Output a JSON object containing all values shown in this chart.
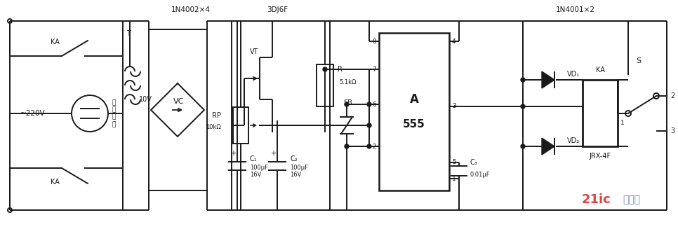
{
  "bg": "#ffffff",
  "lc": "#1a1a1a",
  "lw": 1.4,
  "label_1N4002": "1N4002×4",
  "label_3DJ6F": "3DJ6F",
  "label_1N4001": "1N4001×2",
  "label_220V": "~220V",
  "label_T": "T",
  "label_10V": "10V",
  "label_VC": "VC",
  "label_VT": "VT",
  "label_RP": "RP",
  "label_RP_val": "10kΩ",
  "label_R": "R",
  "label_R_val": "5.1kΩ",
  "label_SB": "SB",
  "label_A": "A",
  "label_555": "555",
  "label_C1": "C₁",
  "label_C1_val1": "100μF",
  "label_C1_val2": "16V",
  "label_C2": "C₂",
  "label_C2_val1": "100μF",
  "label_C2_val2": "16V",
  "label_C3": "C₃",
  "label_C3_val": "0.01μF",
  "label_KA_top": "KA",
  "label_KA_bot": "KA",
  "label_KA_relay": "KA",
  "label_JRX": "JRX-4F",
  "label_VD1": "VD₁",
  "label_VD2": "VD₂",
  "label_S": "S",
  "label_home": "家\n电\n插\n座",
  "p1": "1",
  "p2": "2",
  "p3": "3",
  "p4": "4",
  "p5": "5",
  "p6": "6",
  "p7": "7",
  "p8": "8",
  "wm1": "21ic",
  "wm2": "电子网",
  "wm_c1": "#dd4444",
  "wm_c2": "#7788cc"
}
